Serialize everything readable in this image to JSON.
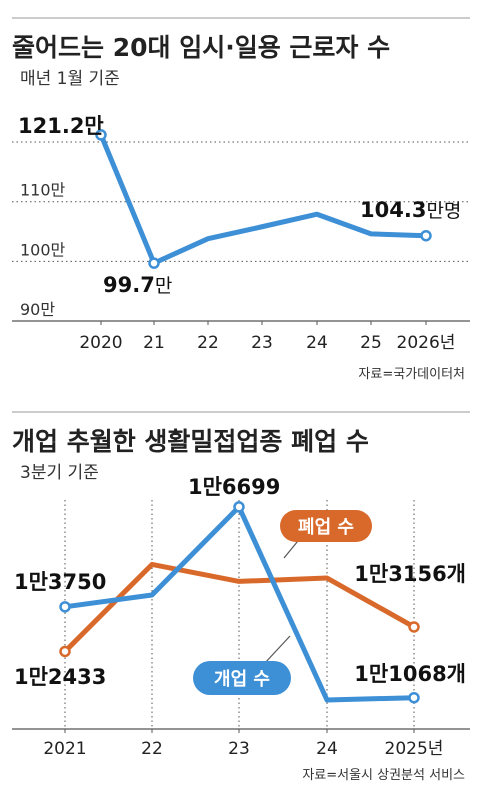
{
  "chart_data": [
    {
      "type": "line",
      "title": "줄어드는 20대 임시·일용 근로자 수",
      "subtitle": "매년 1월 기준",
      "categories": [
        "2020",
        "21",
        "22",
        "23",
        "24",
        "25",
        "2026년"
      ],
      "series": [
        {
          "values": [
            121.2,
            99.7,
            103.8,
            105.8,
            107.9,
            104.6,
            104.3
          ],
          "color": "#3d8fd6"
        }
      ],
      "ylim": [
        90,
        125
      ],
      "yticks": [
        "110만",
        "100만",
        "90만"
      ],
      "labels": {
        "first": "121.2만",
        "low_num": "99.7",
        "low_unit": "만",
        "last_num": "104.3",
        "last_unit": "만명"
      },
      "source": "자료=국가데이터처",
      "grid": "dotted"
    },
    {
      "type": "line",
      "title": "개업 추월한 생활밀접업종 폐업 수",
      "subtitle": "3분기 기준",
      "categories": [
        "2021",
        "22",
        "23",
        "24",
        "2025년"
      ],
      "series": [
        {
          "name": "개업 수",
          "values": [
            13750,
            14100,
            16699,
            11000,
            11068
          ],
          "color": "#3d8fd6"
        },
        {
          "name": "폐업 수",
          "values": [
            12433,
            15000,
            14500,
            14600,
            13156
          ],
          "color": "#d9692b"
        }
      ],
      "labels": {
        "open_first": "1만3750",
        "open_peak": "1만6699",
        "open_last": "1만1068개",
        "close_first": "1만2433",
        "close_last": "1만3156개"
      },
      "source": "자료=서울시 상권분석 서비스"
    }
  ]
}
